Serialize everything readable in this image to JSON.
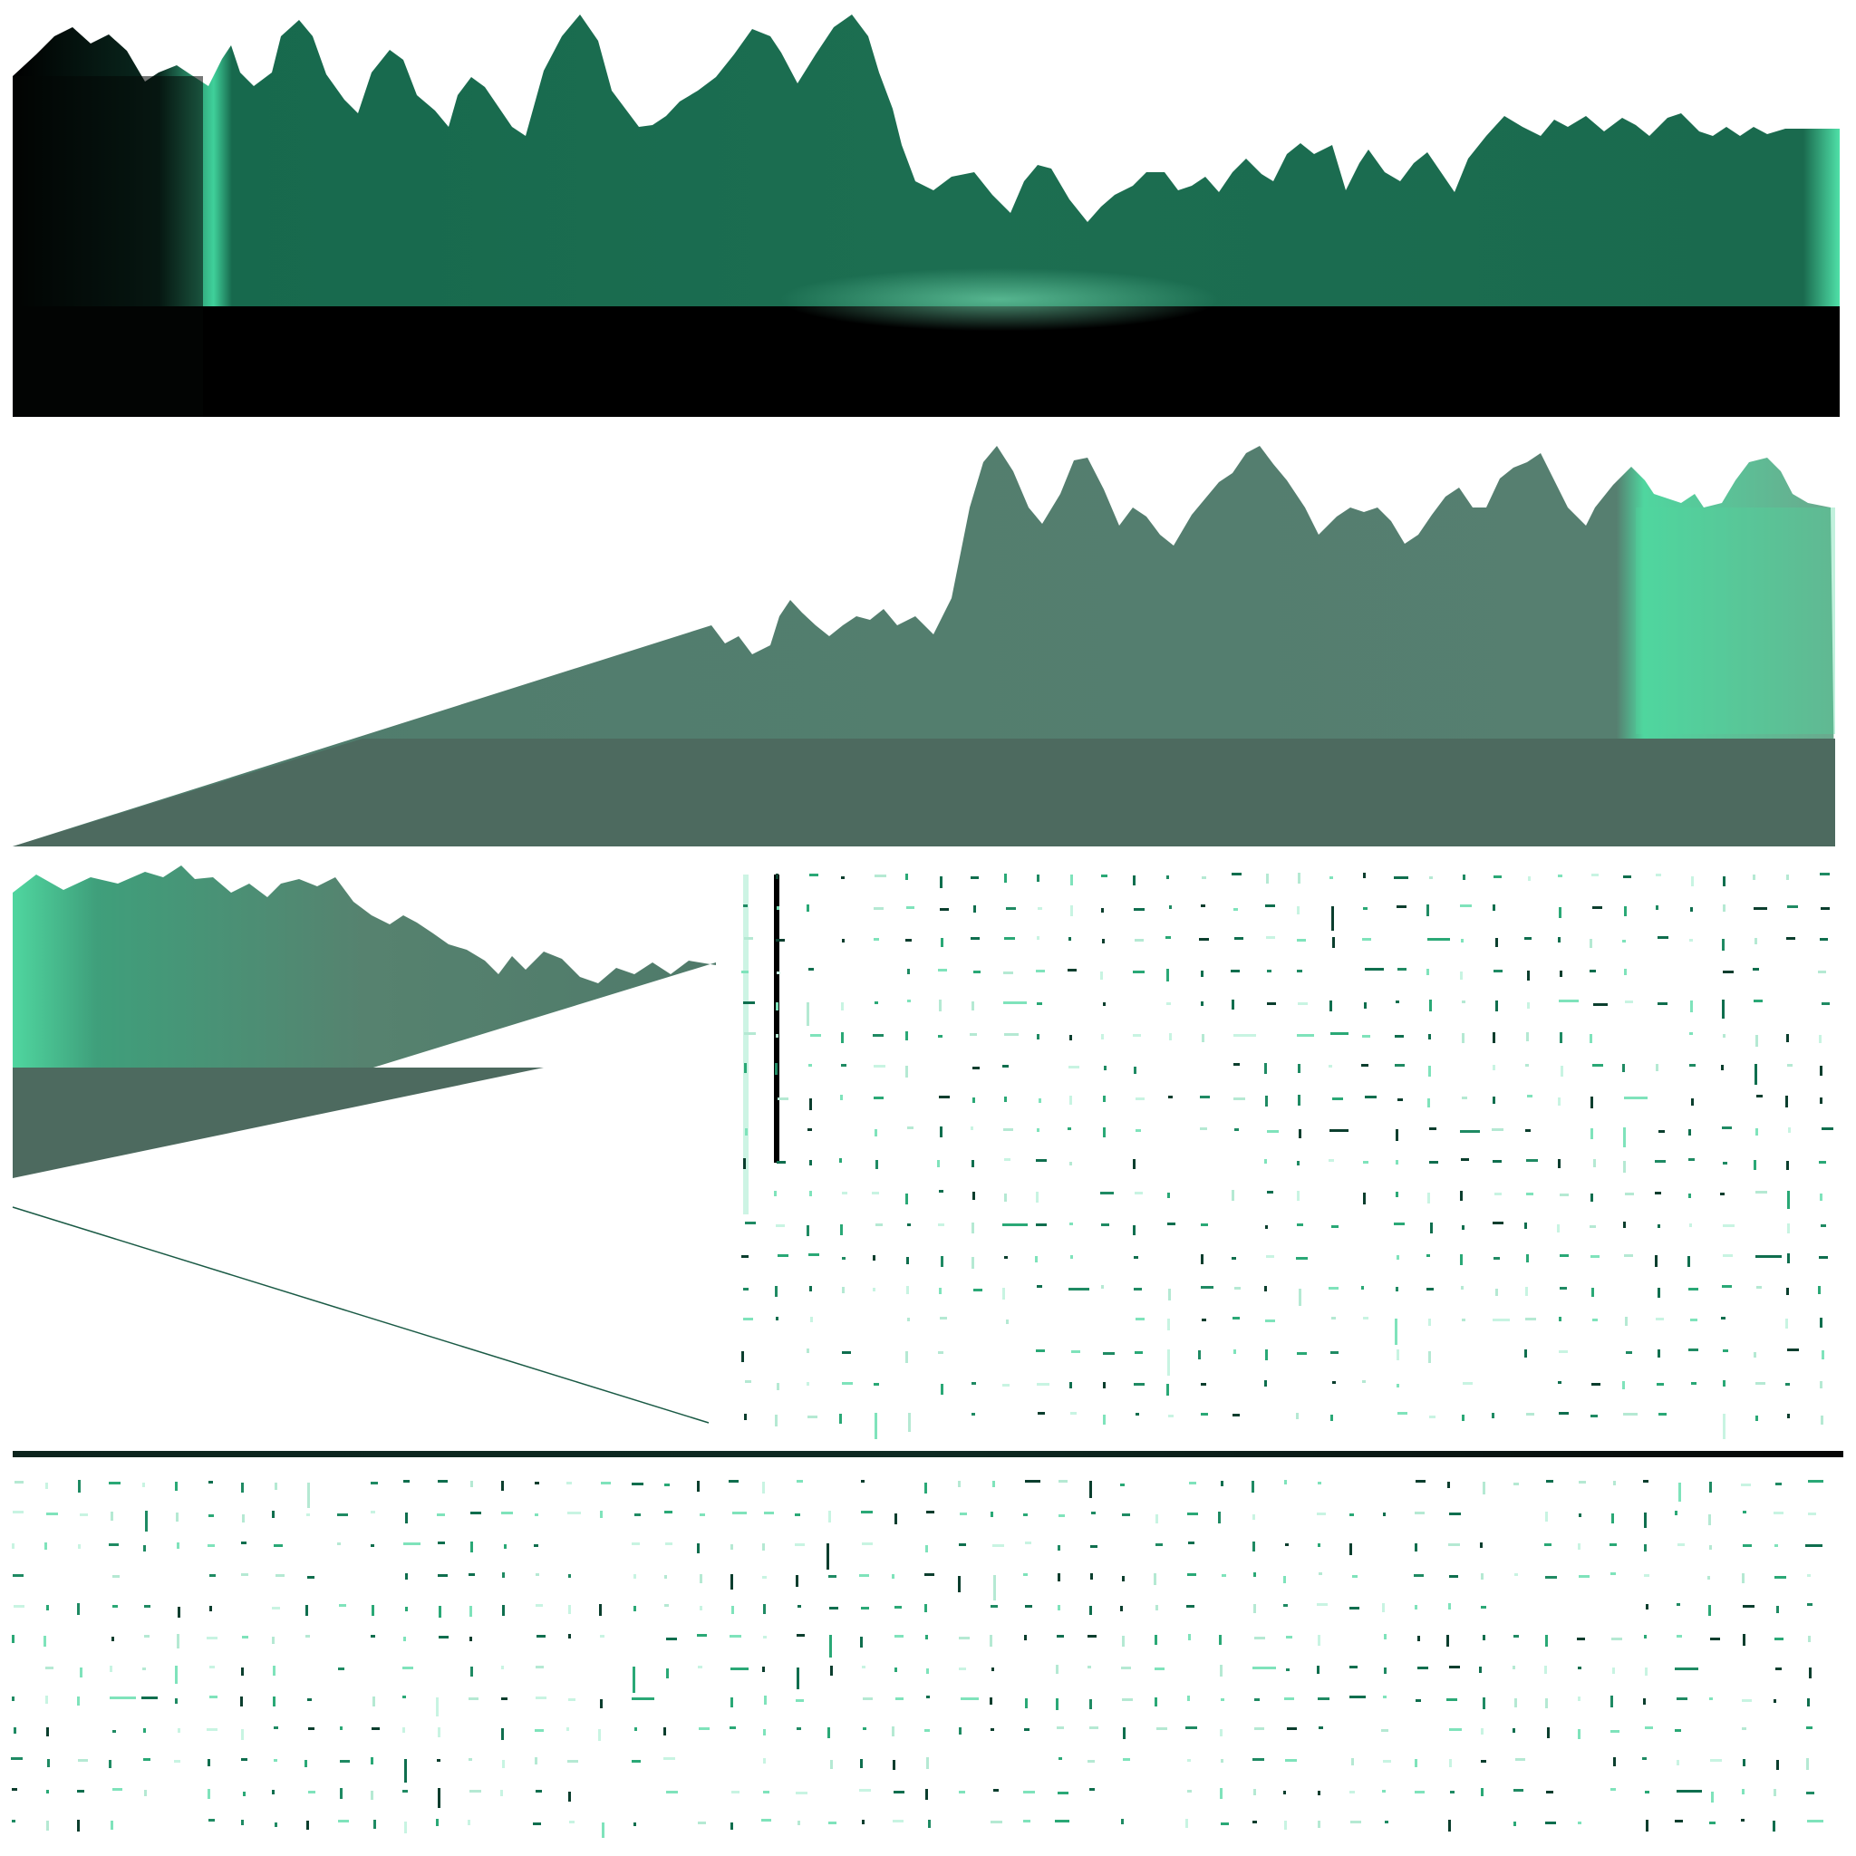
{
  "palette": {
    "background": "#ffffff",
    "forest_dark": "#0f6a4a",
    "forest_mid": "#1d6e52",
    "forest_muted": "#54806e",
    "foreground_muted": "#4d6a5f",
    "glow": "#5fd8a4",
    "shadow": "#000000",
    "tick_dark": "#1a7a5a",
    "tick_light": "#bff3de",
    "rule": "#0e2a22"
  },
  "strips": [
    {
      "id": "forest-strip-1",
      "shape": "silhouette-with-dark-ground",
      "palette": [
        "forest_dark",
        "shadow"
      ]
    },
    {
      "id": "forest-strip-2",
      "shape": "silhouette-on-wedge",
      "palette": [
        "forest_muted",
        "foreground_muted",
        "glow"
      ]
    },
    {
      "id": "forest-strip-3",
      "shape": "silhouette-on-slanted-wedge",
      "palette": [
        "forest_muted",
        "foreground_muted",
        "glow"
      ]
    }
  ],
  "dash_grid_count": 2
}
